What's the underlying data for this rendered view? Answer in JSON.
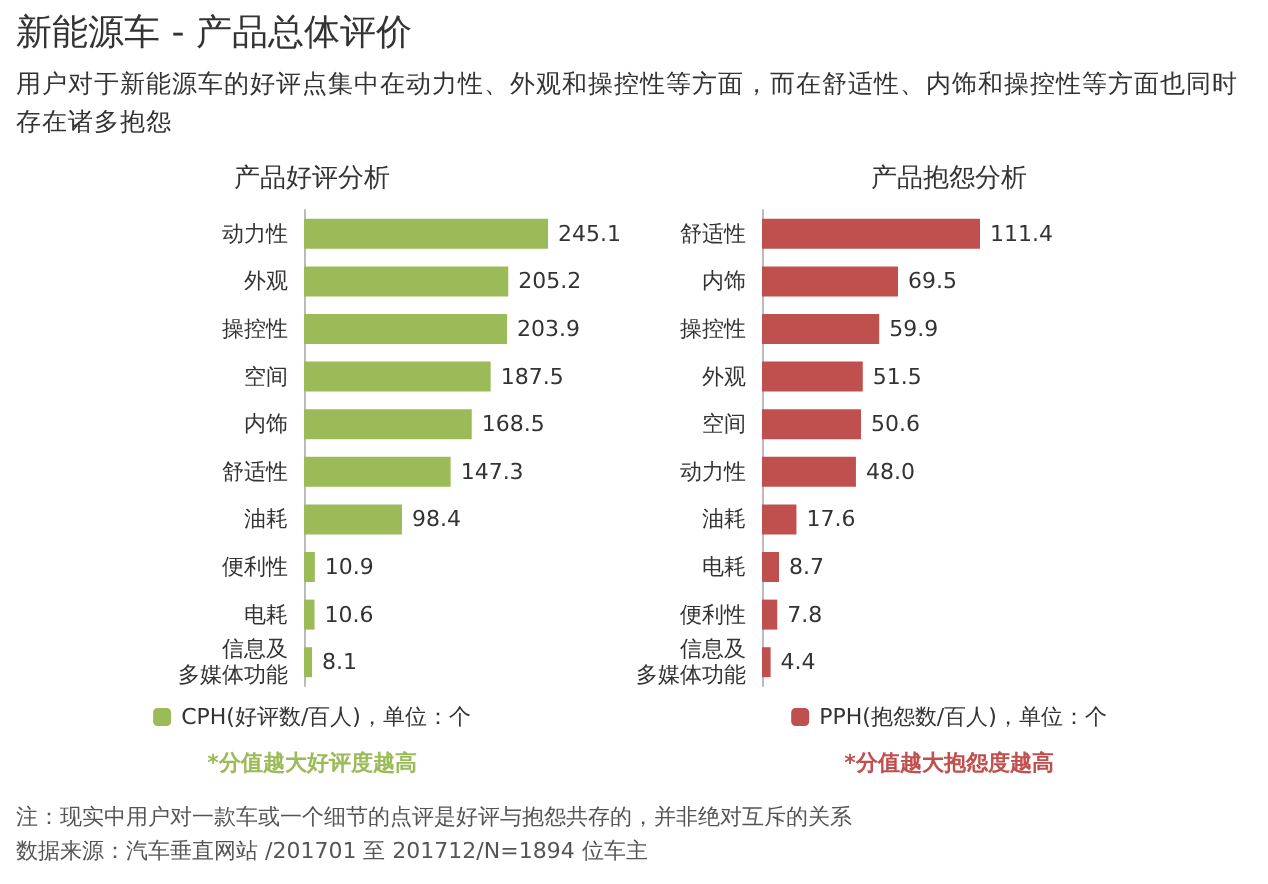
{
  "chart_data": [
    {
      "type": "other",
      "title": "新能源车 - 产品总体评价",
      "subtitle": "用户对于新能源车的好评点集中在动力性、外观和操控性等方面，而在舒适性、内饰和操控性等方面也同时存在诸多抱怨",
      "annotations": [
        "注：现实中用户对一款车或一个细节的点评是好评与抱怨共存的，并非绝对互斥的关系",
        "数据来源：汽车垂直网站 /201701 至 201712/N=1894 位车主"
      ]
    },
    {
      "type": "bar",
      "orientation": "horizontal",
      "title": "产品好评分析",
      "categories": [
        "动力性",
        "外观",
        "操控性",
        "空间",
        "内饰",
        "舒适性",
        "油耗",
        "便利性",
        "电耗",
        "信息及多媒体功能"
      ],
      "series": [
        {
          "name": "CPH(好评数/百人)，单位：个",
          "color": "#9bbb59",
          "values": [
            245.1,
            205.2,
            203.9,
            187.5,
            168.5,
            147.3,
            98.4,
            10.9,
            10.6,
            8.1
          ],
          "value_labels": [
            "245.1",
            "205.2",
            "203.9",
            "187.5",
            "168.5",
            "147.3",
            "98.4",
            "10.9",
            "10.6",
            "8.1"
          ]
        }
      ],
      "legend": "bottom",
      "annotations": [
        "*分值越大好评度越高"
      ]
    },
    {
      "type": "bar",
      "orientation": "horizontal",
      "title": "产品抱怨分析",
      "categories": [
        "舒适性",
        "内饰",
        "操控性",
        "外观",
        "空间",
        "动力性",
        "油耗",
        "电耗",
        "便利性",
        "信息及多媒体功能"
      ],
      "series": [
        {
          "name": "PPH(抱怨数/百人)，单位：个",
          "color": "#c0504d",
          "values": [
            111.4,
            69.5,
            59.9,
            51.5,
            50.6,
            48.0,
            17.6,
            8.7,
            7.8,
            4.4
          ],
          "value_labels": [
            "111.4",
            "69.5",
            "59.9",
            "51.5",
            "50.6",
            "48.0",
            "17.6",
            "8.7",
            "7.8",
            "4.4"
          ]
        }
      ],
      "legend": "bottom",
      "annotations": [
        "*分值越大抱怨度越高"
      ]
    }
  ]
}
